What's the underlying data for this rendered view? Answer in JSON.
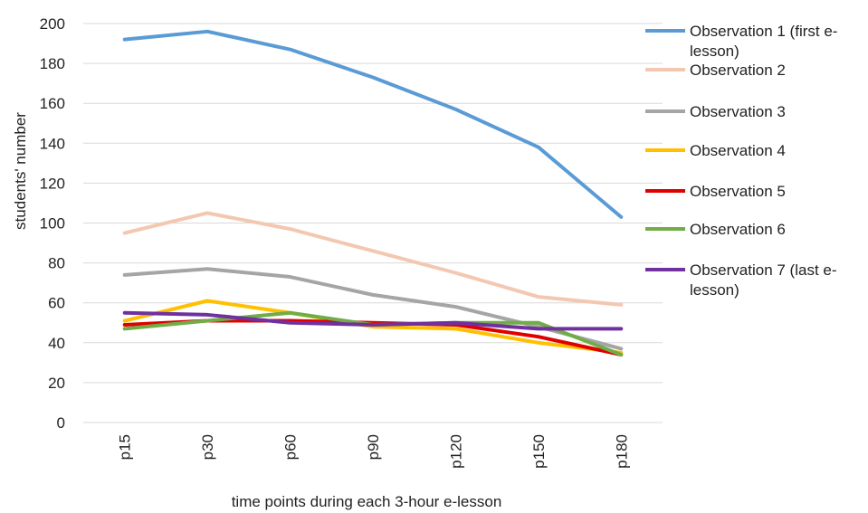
{
  "chart_data": {
    "type": "line",
    "title": "",
    "xlabel": "time points during each 3-hour e-lesson",
    "ylabel": "students' number",
    "categories": [
      "p15",
      "p30",
      "p60",
      "p90",
      "p120",
      "p150",
      "p180"
    ],
    "ylim": [
      0,
      200
    ],
    "yticks": [
      0,
      20,
      40,
      60,
      80,
      100,
      120,
      140,
      160,
      180,
      200
    ],
    "grid": "horizontal",
    "legend_position": "right",
    "series": [
      {
        "name": "Observation 1 (first e-lesson)",
        "name_lines": [
          "Observation 1 (first e-",
          "lesson)"
        ],
        "color": "#5B9BD5",
        "values": [
          192,
          196,
          187,
          173,
          157,
          138,
          103
        ]
      },
      {
        "name": "Observation 2",
        "name_lines": [
          "Observation 2"
        ],
        "color": "#F4C7B1",
        "values": [
          95,
          105,
          97,
          86,
          75,
          63,
          59
        ]
      },
      {
        "name": "Observation 3",
        "name_lines": [
          "Observation 3"
        ],
        "color": "#A5A5A5",
        "values": [
          74,
          77,
          73,
          64,
          58,
          48,
          37
        ]
      },
      {
        "name": "Observation 4",
        "name_lines": [
          "Observation 4"
        ],
        "color": "#FFC000",
        "values": [
          51,
          61,
          55,
          48,
          47,
          40,
          35
        ]
      },
      {
        "name": "Observation 5",
        "name_lines": [
          "Observation 5"
        ],
        "color": "#E00000",
        "values": [
          49,
          51,
          51,
          50,
          49,
          43,
          34
        ]
      },
      {
        "name": "Observation 6",
        "name_lines": [
          "Observation 6"
        ],
        "color": "#70AD47",
        "values": [
          47,
          51,
          55,
          49,
          50,
          50,
          34
        ]
      },
      {
        "name": "Observation 7 (last e-lesson)",
        "name_lines": [
          "Observation 7 (last e-",
          "lesson)"
        ],
        "color": "#7030A0",
        "values": [
          55,
          54,
          50,
          49,
          50,
          47,
          47
        ]
      }
    ]
  }
}
